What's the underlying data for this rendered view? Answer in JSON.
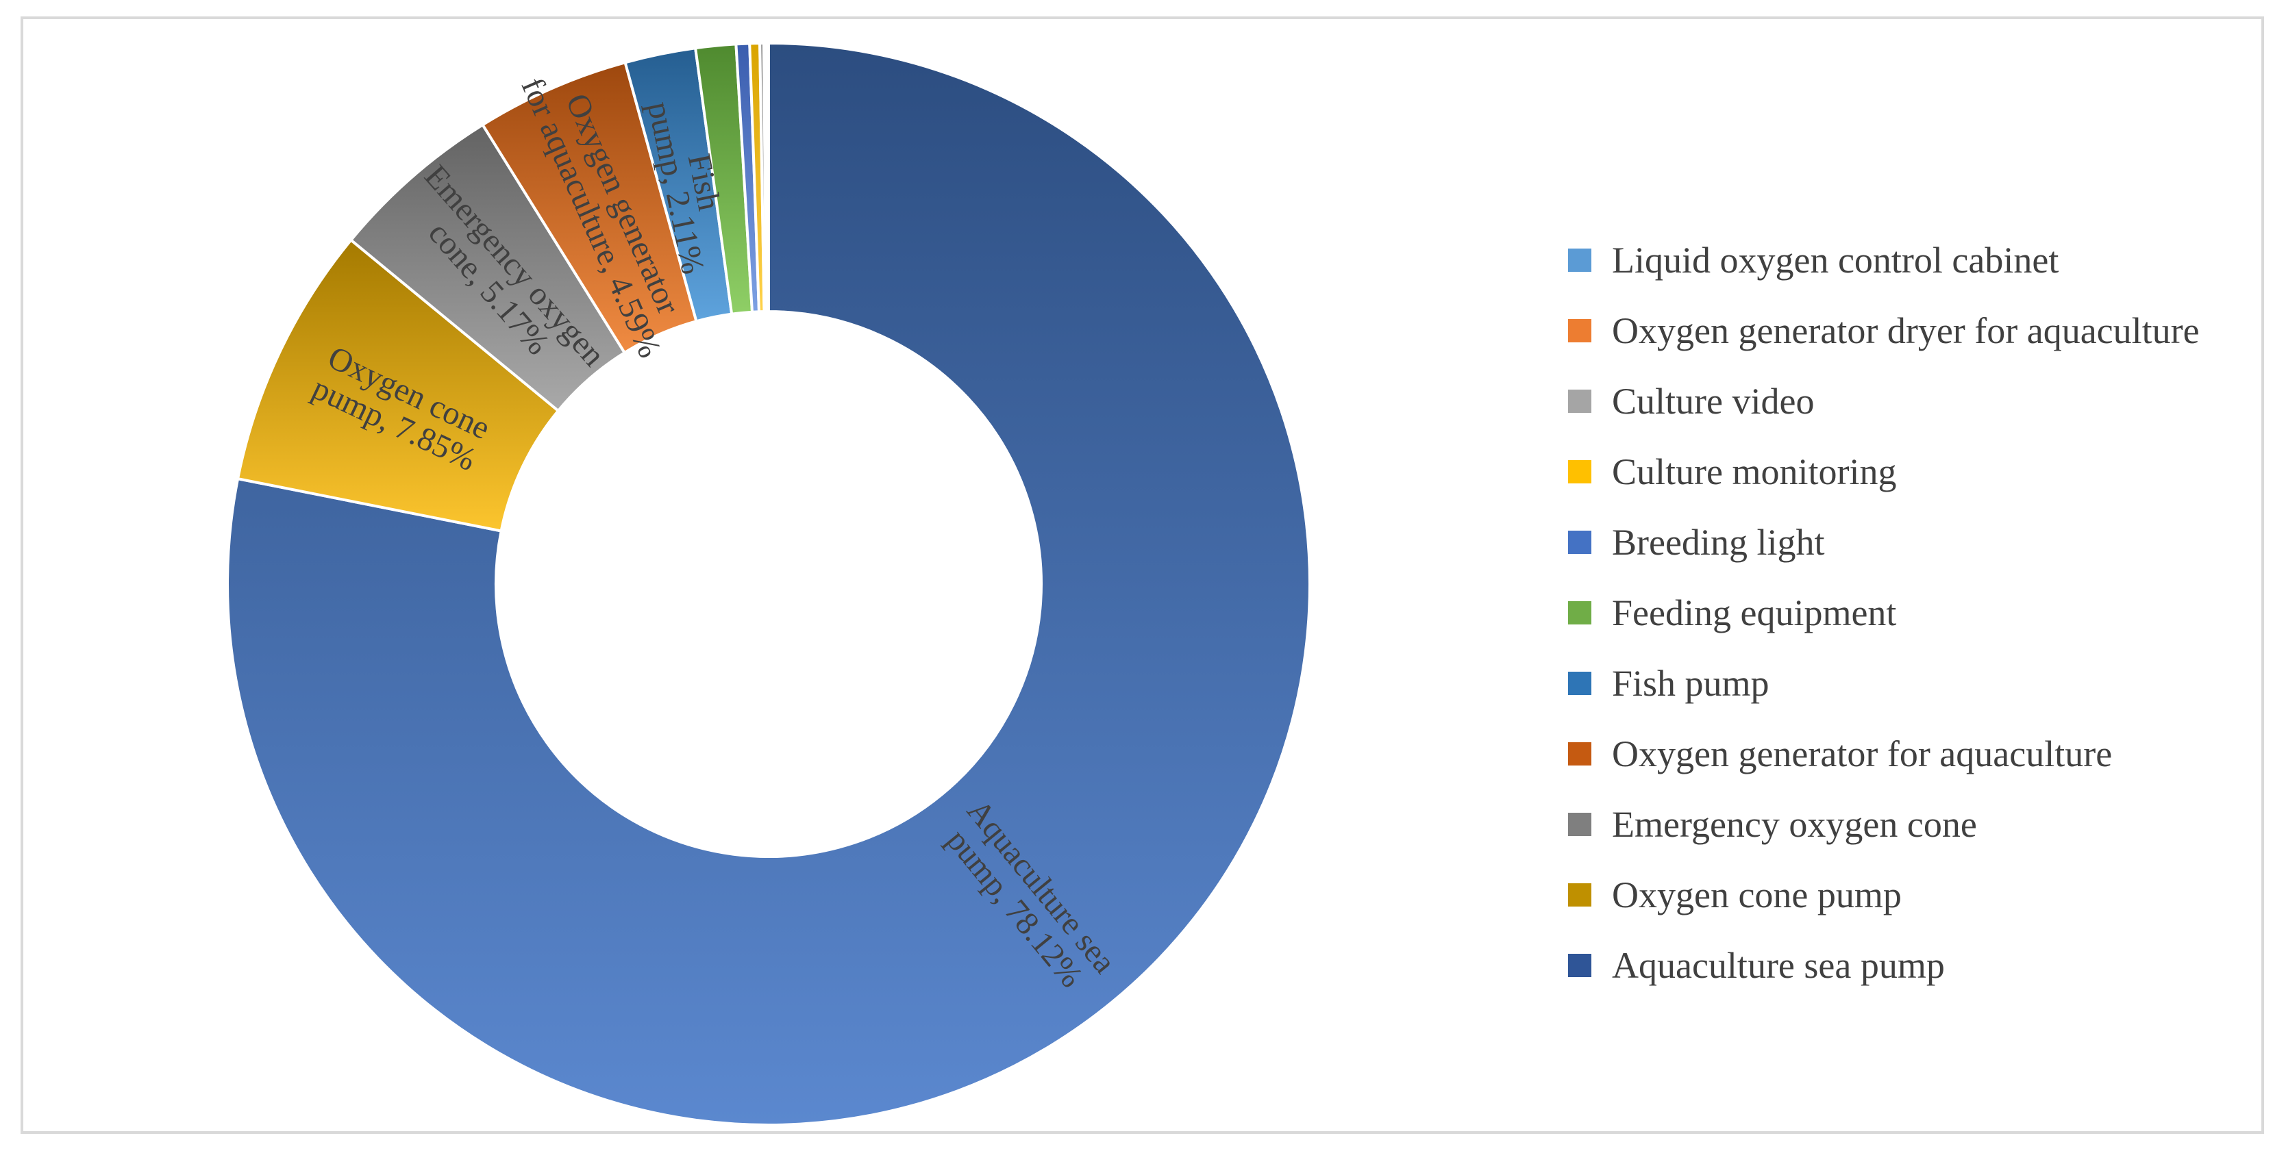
{
  "chart_data": {
    "type": "pie",
    "donut": true,
    "title": "",
    "legend_position": "right",
    "slices": [
      {
        "label": "Aquaculture sea pump",
        "value": 78.12,
        "data_label": "Aquaculture sea pump, 78.12%",
        "color_top": "#2c4d80",
        "color_bottom": "#5b88cf"
      },
      {
        "label": "Oxygen cone pump",
        "value": 7.85,
        "data_label": "Oxygen cone pump, 7.85%",
        "color_top": "#a57a00",
        "color_bottom": "#fcc52e"
      },
      {
        "label": "Emergency oxygen cone",
        "value": 5.17,
        "data_label": "Emergency oxygen cone, 5.17%",
        "color_top": "#636363",
        "color_bottom": "#a9a9a9"
      },
      {
        "label": "Oxygen generator for aquaculture",
        "value": 4.59,
        "data_label": "Oxygen generator for aquaculture, 4.59%",
        "color_top": "#9e480e",
        "color_bottom": "#f08b42"
      },
      {
        "label": "Fish pump",
        "value": 2.11,
        "data_label": "Fish pump, 2.11%",
        "color_top": "#255e91",
        "color_bottom": "#5ea3dd"
      },
      {
        "label": "Feeding equipment",
        "value": 1.2,
        "data_label": "",
        "color_top": "#4f8a2f",
        "color_bottom": "#8fcf66"
      },
      {
        "label": "Breeding light",
        "value": 0.4,
        "data_label": "",
        "color_top": "#3a5dae",
        "color_bottom": "#7da0e3"
      },
      {
        "label": "Culture monitoring",
        "value": 0.3,
        "data_label": "",
        "color_top": "#d9a400",
        "color_bottom": "#ffd24a"
      },
      {
        "label": "Culture video",
        "value": 0.12,
        "data_label": "",
        "color_top": "#8f8f8f",
        "color_bottom": "#c7c7c7"
      },
      {
        "label": "Oxygen generator dryer for aquaculture",
        "value": 0.08,
        "data_label": "",
        "color_top": "#d4651f",
        "color_bottom": "#f6a56c"
      },
      {
        "label": "Liquid oxygen control cabinet",
        "value": 0.06,
        "data_label": "",
        "color_top": "#4a86c3",
        "color_bottom": "#8fc0ec"
      }
    ],
    "legend": [
      {
        "label": "Liquid oxygen control cabinet",
        "color": "#5b9bd5"
      },
      {
        "label": "Oxygen generator dryer for aquaculture",
        "color": "#ed7d31"
      },
      {
        "label": "Culture video",
        "color": "#a5a5a5"
      },
      {
        "label": "Culture monitoring",
        "color": "#ffc000"
      },
      {
        "label": "Breeding light",
        "color": "#4472c4"
      },
      {
        "label": "Feeding equipment",
        "color": "#70ad47"
      },
      {
        "label": "Fish pump",
        "color": "#2e75b6"
      },
      {
        "label": "Oxygen generator for aquaculture",
        "color": "#c55a11"
      },
      {
        "label": "Emergency oxygen cone",
        "color": "#7f7f7f"
      },
      {
        "label": "Oxygen cone pump",
        "color": "#bf9000"
      },
      {
        "label": "Aquaculture sea pump",
        "color": "#2f5597"
      }
    ]
  }
}
